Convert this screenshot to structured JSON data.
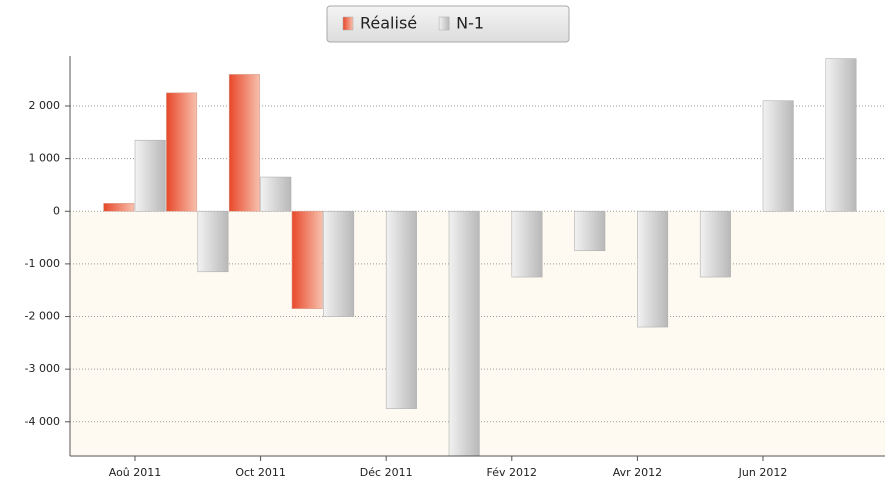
{
  "chart_data": {
    "type": "bar",
    "categories": [
      "Aoû 2011",
      null,
      "Oct 2011",
      null,
      "Déc 2011",
      null,
      "Fév 2012",
      null,
      "Avr 2012",
      null,
      "Jun 2012",
      null
    ],
    "series": [
      {
        "name": "Réalisé",
        "color": "#e8482a",
        "values": [
          150,
          2250,
          2600,
          -1850,
          null,
          null,
          null,
          null,
          null,
          null,
          null,
          null
        ]
      },
      {
        "name": "N-1",
        "color": "#c8c8c8",
        "values": [
          1350,
          -1150,
          650,
          -2000,
          -3750,
          -4700,
          -1250,
          -750,
          -2200,
          -1250,
          2100,
          2900
        ]
      }
    ],
    "ylim": [
      -4650,
      2950
    ],
    "yticks": [
      {
        "value": -4000,
        "label": "-4 000"
      },
      {
        "value": -3000,
        "label": "-3 000"
      },
      {
        "value": -2000,
        "label": "-2 000"
      },
      {
        "value": -1000,
        "label": "-1 000"
      },
      0,
      {
        "value": 1000,
        "label": "1 000"
      },
      {
        "value": 2000,
        "label": "2 000"
      }
    ],
    "grid": true,
    "legend": "top"
  }
}
